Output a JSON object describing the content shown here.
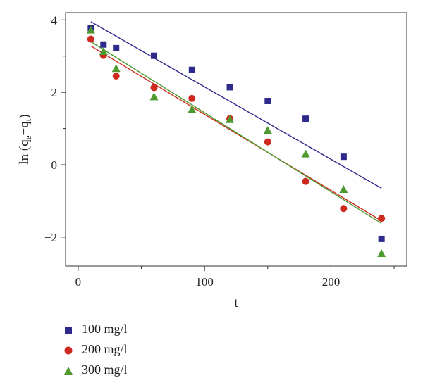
{
  "chart_data": {
    "type": "scatter",
    "xlabel": "t",
    "ylabel": {
      "prefix": "ln (q",
      "sub1": "e",
      "mid": "−q",
      "sub2": "t",
      "suffix": ")"
    },
    "xlim": [
      -10,
      260
    ],
    "ylim": [
      -2.8,
      4.2
    ],
    "xticks": [
      0,
      100,
      200
    ],
    "xtick_labels": [
      "0",
      "100",
      "200"
    ],
    "yticks": [
      -2,
      0,
      2,
      4
    ],
    "ytick_labels": [
      "−2",
      "0",
      "2",
      "4"
    ],
    "grid": false,
    "legend_position": "below-left",
    "series": [
      {
        "name": "100 mg/l",
        "marker": "square",
        "color": "#2e2a8c",
        "x": [
          10,
          20,
          30,
          60,
          90,
          120,
          150,
          180,
          210,
          240
        ],
        "y": [
          3.77,
          3.32,
          3.22,
          3.01,
          2.62,
          2.14,
          1.76,
          1.27,
          0.22,
          -2.05
        ],
        "fit": {
          "x": [
            10,
            240
          ],
          "y": [
            3.95,
            -0.65
          ]
        }
      },
      {
        "name": "200 mg/l",
        "marker": "circle",
        "color": "#cc2a1e",
        "x": [
          10,
          20,
          30,
          60,
          90,
          120,
          150,
          180,
          210,
          240
        ],
        "y": [
          3.47,
          3.02,
          2.45,
          2.13,
          1.83,
          1.27,
          0.63,
          -0.46,
          -1.21,
          -1.48
        ],
        "fit": {
          "x": [
            10,
            240
          ],
          "y": [
            3.28,
            -1.55
          ]
        }
      },
      {
        "name": "300 mg/l",
        "marker": "triangle",
        "color": "#4e9a2e",
        "x": [
          10,
          20,
          30,
          60,
          90,
          120,
          150,
          180,
          210,
          240
        ],
        "y": [
          3.72,
          3.13,
          2.66,
          1.88,
          1.53,
          1.25,
          0.95,
          0.3,
          -0.68,
          -2.45
        ],
        "fit": {
          "x": [
            10,
            240
          ],
          "y": [
            3.4,
            -1.62
          ]
        }
      }
    ]
  }
}
